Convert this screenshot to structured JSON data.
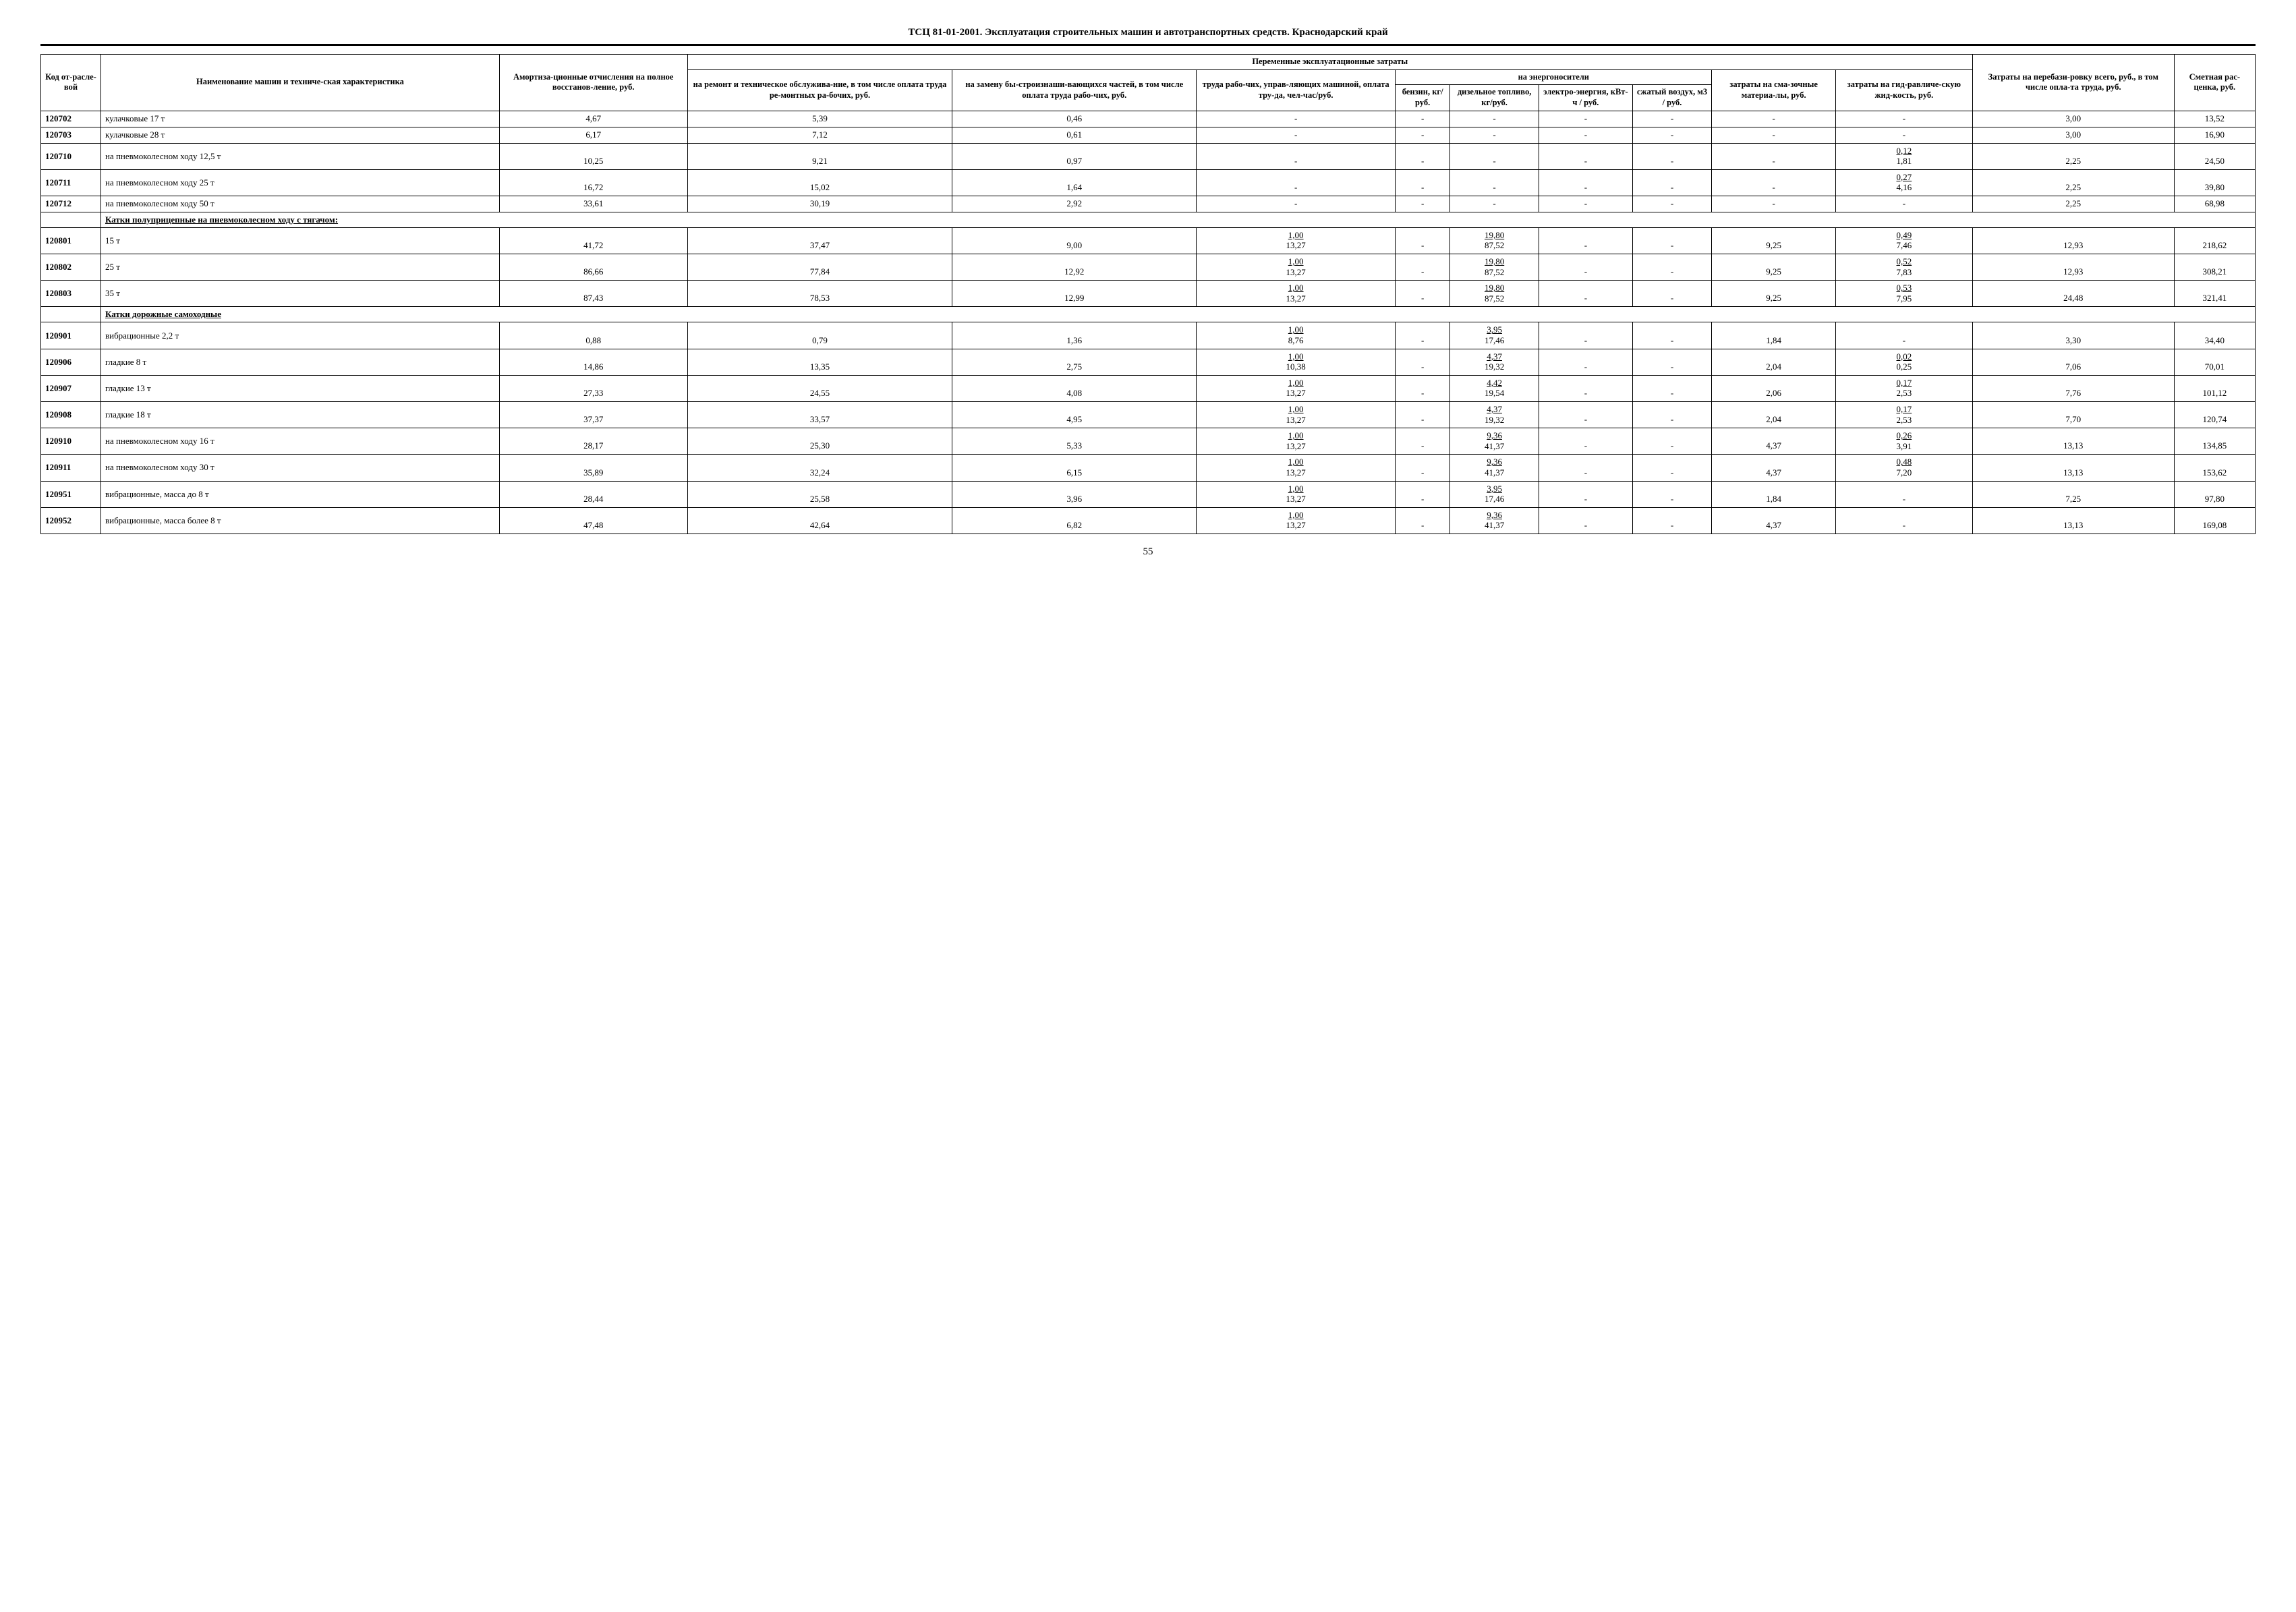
{
  "title": "ТСЦ 81-01-2001. Эксплуатация строительных машин и автотранспортных средств. Краснодарский край",
  "pageNumber": "55",
  "headers": {
    "code": "Код от-расле-вой",
    "name": "Наименование машин и техниче-ская характеристика",
    "amort": "Амортиза-ционные отчисления на полное восстанов-ление, руб.",
    "variable_group": "Переменные эксплуатационные затраты",
    "repair": "на ремонт и техническое обслужива-ние, в том числе оплата труда ре-монтных ра-бочих, руб.",
    "replace": "на замену бы-строизнаши-вающихся частей, в том числе оплата труда рабо-чих, руб.",
    "labor": "труда рабо-чих, управ-ляющих машиной, оплата тру-да, чел-час/руб.",
    "energy_group": "на энергоносители",
    "petrol": "бензин, кг/руб.",
    "diesel": "дизельное топливо, кг/руб.",
    "electro": "электро-энергия, кВт-ч / руб.",
    "air": "сжатый воздух, м3 / руб.",
    "lube": "затраты на сма-зочные материа-лы, руб.",
    "hydr": "затраты на гид-равличе-скую жид-кость, руб.",
    "reloc": "Затраты на перебази-ровку всего, руб., в том числе опла-та труда, руб.",
    "rate": "Сметная рас-ценка, руб."
  },
  "rows": [
    {
      "type": "data",
      "code": "120702",
      "name": "кулачковые 17 т",
      "amort": "4,67",
      "repair": "5,39",
      "replace": "0,46",
      "labor_t": "",
      "labor_b": "-",
      "petrol": "-",
      "diesel_t": "",
      "diesel_b": "-",
      "electro": "-",
      "air": "-",
      "lube": "-",
      "hydr_t": "",
      "hydr_b": "-",
      "reloc": "3,00",
      "rate": "13,52"
    },
    {
      "type": "data",
      "code": "120703",
      "name": "кулачковые 28 т",
      "amort": "6,17",
      "repair": "7,12",
      "replace": "0,61",
      "labor_t": "",
      "labor_b": "-",
      "petrol": "-",
      "diesel_t": "",
      "diesel_b": "-",
      "electro": "-",
      "air": "-",
      "lube": "-",
      "hydr_t": "",
      "hydr_b": "-",
      "reloc": "3,00",
      "rate": "16,90"
    },
    {
      "type": "data",
      "code": "120710",
      "name": "на пневмоколесном ходу 12,5 т",
      "amort": "10,25",
      "repair": "9,21",
      "replace": "0,97",
      "labor_t": "",
      "labor_b": "-",
      "petrol": "-",
      "diesel_t": "",
      "diesel_b": "-",
      "electro": "-",
      "air": "-",
      "lube": "-",
      "hydr_t": "0,12",
      "hydr_b": "1,81",
      "reloc": "2,25",
      "rate": "24,50"
    },
    {
      "type": "data",
      "code": "120711",
      "name": "на пневмоколесном ходу 25 т",
      "amort": "16,72",
      "repair": "15,02",
      "replace": "1,64",
      "labor_t": "",
      "labor_b": "-",
      "petrol": "-",
      "diesel_t": "",
      "diesel_b": "-",
      "electro": "-",
      "air": "-",
      "lube": "-",
      "hydr_t": "0,27",
      "hydr_b": "4,16",
      "reloc": "2,25",
      "rate": "39,80"
    },
    {
      "type": "data",
      "code": "120712",
      "name": "на пневмоколесном ходу 50 т",
      "amort": "33,61",
      "repair": "30,19",
      "replace": "2,92",
      "labor_t": "",
      "labor_b": "-",
      "petrol": "-",
      "diesel_t": "",
      "diesel_b": "-",
      "electro": "-",
      "air": "-",
      "lube": "-",
      "hydr_t": "",
      "hydr_b": "-",
      "reloc": "2,25",
      "rate": "68,98"
    },
    {
      "type": "section",
      "name": "Катки полуприцепные на пневмоколесном ходу с тягачом:"
    },
    {
      "type": "data",
      "code": "120801",
      "name": "15 т",
      "amort": "41,72",
      "repair": "37,47",
      "replace": "9,00",
      "labor_t": "1,00",
      "labor_b": "13,27",
      "petrol": "-",
      "diesel_t": "19,80",
      "diesel_b": "87,52",
      "electro": "-",
      "air": "-",
      "lube": "9,25",
      "hydr_t": "0,49",
      "hydr_b": "7,46",
      "reloc": "12,93",
      "rate": "218,62"
    },
    {
      "type": "data",
      "code": "120802",
      "name": "25 т",
      "amort": "86,66",
      "repair": "77,84",
      "replace": "12,92",
      "labor_t": "1,00",
      "labor_b": "13,27",
      "petrol": "-",
      "diesel_t": "19,80",
      "diesel_b": "87,52",
      "electro": "-",
      "air": "-",
      "lube": "9,25",
      "hydr_t": "0,52",
      "hydr_b": "7,83",
      "reloc": "12,93",
      "rate": "308,21"
    },
    {
      "type": "data",
      "code": "120803",
      "name": "35 т",
      "amort": "87,43",
      "repair": "78,53",
      "replace": "12,99",
      "labor_t": "1,00",
      "labor_b": "13,27",
      "petrol": "-",
      "diesel_t": "19,80",
      "diesel_b": "87,52",
      "electro": "-",
      "air": "-",
      "lube": "9,25",
      "hydr_t": "0,53",
      "hydr_b": "7,95",
      "reloc": "24,48",
      "rate": "321,41"
    },
    {
      "type": "section",
      "name": "Катки дорожные самоходные"
    },
    {
      "type": "data",
      "code": "120901",
      "name": "вибрационные 2,2 т",
      "amort": "0,88",
      "repair": "0,79",
      "replace": "1,36",
      "labor_t": "1,00",
      "labor_b": "8,76",
      "petrol": "-",
      "diesel_t": "3,95",
      "diesel_b": "17,46",
      "electro": "-",
      "air": "-",
      "lube": "1,84",
      "hydr_t": "",
      "hydr_b": "-",
      "reloc": "3,30",
      "rate": "34,40"
    },
    {
      "type": "data",
      "code": "120906",
      "name": "гладкие 8 т",
      "amort": "14,86",
      "repair": "13,35",
      "replace": "2,75",
      "labor_t": "1,00",
      "labor_b": "10,38",
      "petrol": "-",
      "diesel_t": "4,37",
      "diesel_b": "19,32",
      "electro": "-",
      "air": "-",
      "lube": "2,04",
      "hydr_t": "0,02",
      "hydr_b": "0,25",
      "reloc": "7,06",
      "rate": "70,01"
    },
    {
      "type": "data",
      "code": "120907",
      "name": "гладкие 13 т",
      "amort": "27,33",
      "repair": "24,55",
      "replace": "4,08",
      "labor_t": "1,00",
      "labor_b": "13,27",
      "petrol": "-",
      "diesel_t": "4,42",
      "diesel_b": "19,54",
      "electro": "-",
      "air": "-",
      "lube": "2,06",
      "hydr_t": "0,17",
      "hydr_b": "2,53",
      "reloc": "7,76",
      "rate": "101,12"
    },
    {
      "type": "data",
      "code": "120908",
      "name": "гладкие 18 т",
      "amort": "37,37",
      "repair": "33,57",
      "replace": "4,95",
      "labor_t": "1,00",
      "labor_b": "13,27",
      "petrol": "-",
      "diesel_t": "4,37",
      "diesel_b": "19,32",
      "electro": "-",
      "air": "-",
      "lube": "2,04",
      "hydr_t": "0,17",
      "hydr_b": "2,53",
      "reloc": "7,70",
      "rate": "120,74"
    },
    {
      "type": "data",
      "code": "120910",
      "name": "на пневмоколесном ходу 16 т",
      "amort": "28,17",
      "repair": "25,30",
      "replace": "5,33",
      "labor_t": "1,00",
      "labor_b": "13,27",
      "petrol": "-",
      "diesel_t": "9,36",
      "diesel_b": "41,37",
      "electro": "-",
      "air": "-",
      "lube": "4,37",
      "hydr_t": "0,26",
      "hydr_b": "3,91",
      "reloc": "13,13",
      "rate": "134,85"
    },
    {
      "type": "data",
      "code": "120911",
      "name": "на пневмоколесном ходу 30 т",
      "amort": "35,89",
      "repair": "32,24",
      "replace": "6,15",
      "labor_t": "1,00",
      "labor_b": "13,27",
      "petrol": "-",
      "diesel_t": "9,36",
      "diesel_b": "41,37",
      "electro": "-",
      "air": "-",
      "lube": "4,37",
      "hydr_t": "0,48",
      "hydr_b": "7,20",
      "reloc": "13,13",
      "rate": "153,62"
    },
    {
      "type": "data",
      "code": "120951",
      "name": "вибрационные, масса до 8 т",
      "amort": "28,44",
      "repair": "25,58",
      "replace": "3,96",
      "labor_t": "1,00",
      "labor_b": "13,27",
      "petrol": "-",
      "diesel_t": "3,95",
      "diesel_b": "17,46",
      "electro": "-",
      "air": "-",
      "lube": "1,84",
      "hydr_t": "",
      "hydr_b": "-",
      "reloc": "7,25",
      "rate": "97,80"
    },
    {
      "type": "data",
      "code": "120952",
      "name": "вибрационные, масса более 8 т",
      "amort": "47,48",
      "repair": "42,64",
      "replace": "6,82",
      "labor_t": "1,00",
      "labor_b": "13,27",
      "petrol": "-",
      "diesel_t": "9,36",
      "diesel_b": "41,37",
      "electro": "-",
      "air": "-",
      "lube": "4,37",
      "hydr_t": "",
      "hydr_b": "-",
      "reloc": "13,13",
      "rate": "169,08"
    }
  ]
}
